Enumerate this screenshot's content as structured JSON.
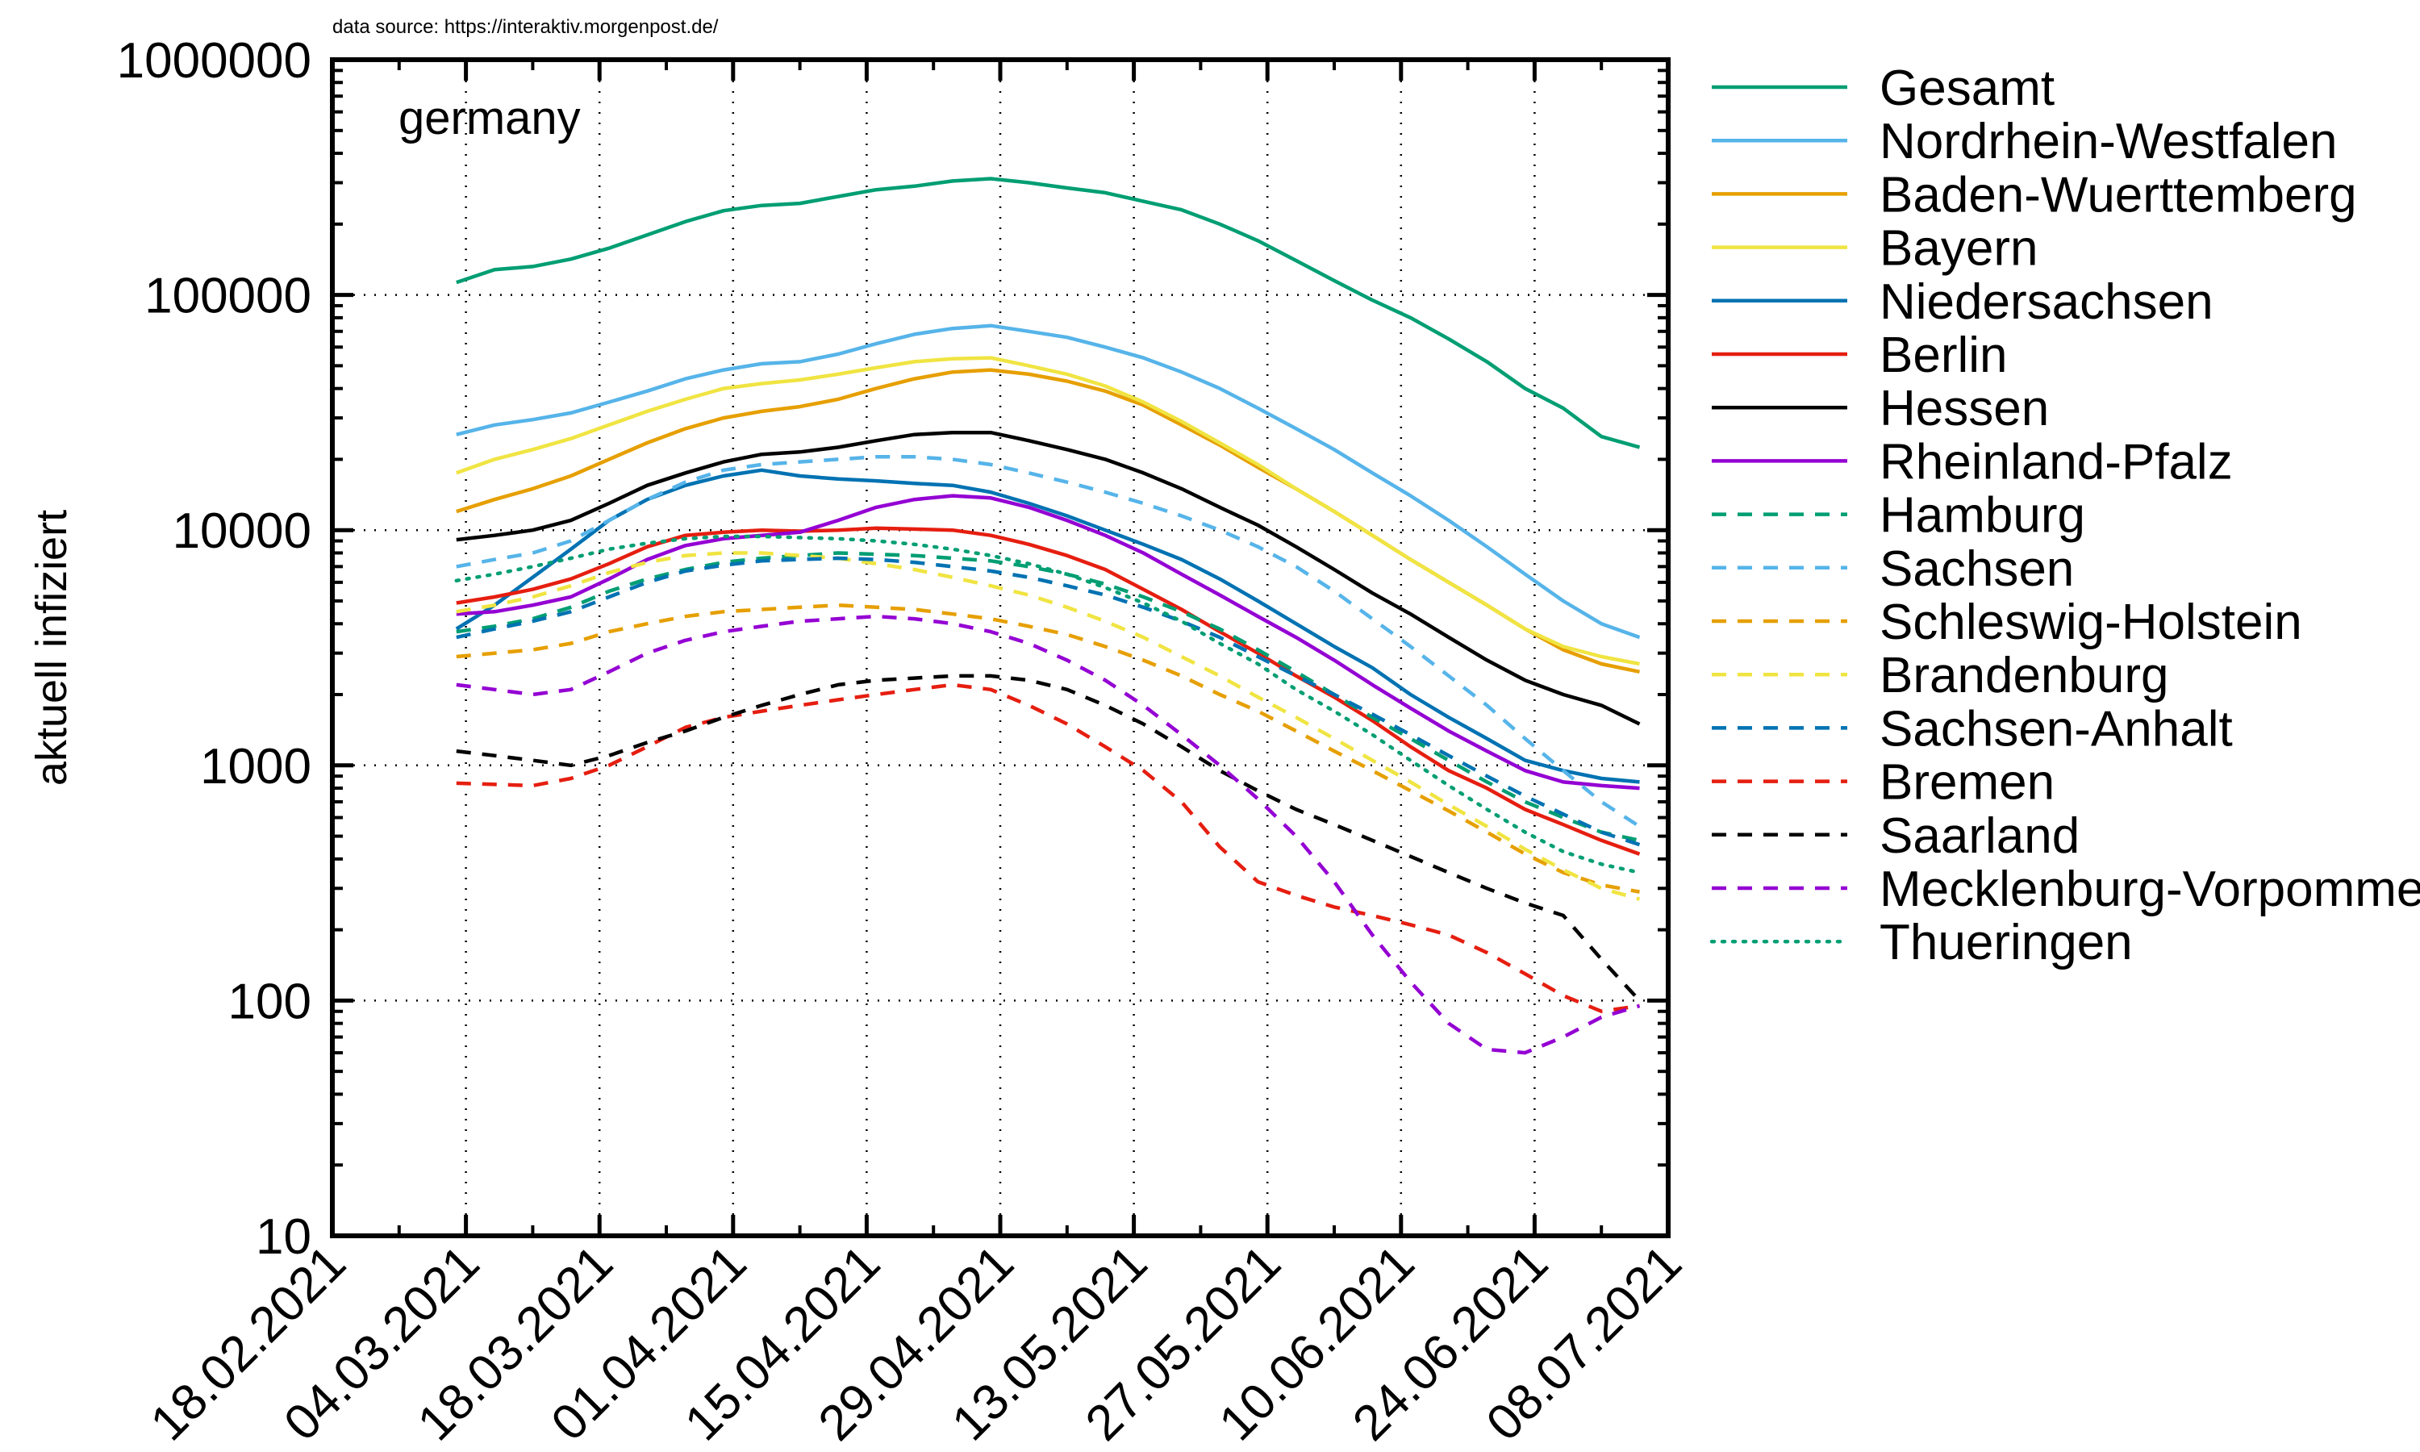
{
  "source_note": "data source: https://interaktiv.morgenpost.de/",
  "chart_data": {
    "type": "line",
    "inset_label": "germany",
    "title": "",
    "xlabel": "",
    "ylabel": "aktuell infiziert",
    "yscale": "log",
    "ylim": [
      10,
      1000000
    ],
    "y_ticks": [
      "10",
      "100",
      "1000",
      "10000",
      "100000",
      "1000000"
    ],
    "xlim": [
      "2021-02-18",
      "2021-07-08"
    ],
    "x_ticks": [
      "18.02.2021",
      "04.03.2021",
      "18.03.2021",
      "01.04.2021",
      "15.04.2021",
      "29.04.2021",
      "13.05.2021",
      "27.05.2021",
      "10.06.2021",
      "24.06.2021",
      "08.07.2021"
    ],
    "grid": true,
    "legend_position": "outside-right",
    "x_start": "2021-03-03",
    "x_step_days": 4,
    "series": [
      {
        "name": "Gesamt",
        "color": "#009e73",
        "dash": "solid",
        "values": [
          113000,
          128000,
          132000,
          142000,
          158000,
          180000,
          205000,
          228000,
          240000,
          245000,
          262000,
          280000,
          290000,
          305000,
          312000,
          300000,
          285000,
          272000,
          250000,
          230000,
          200000,
          170000,
          140000,
          115000,
          95000,
          80000,
          65000,
          52000,
          40000,
          33000,
          25000,
          22500
        ]
      },
      {
        "name": "Nordrhein-Westfalen",
        "color": "#56b4e9",
        "dash": "solid",
        "values": [
          25500,
          28000,
          29500,
          31500,
          35000,
          39000,
          44000,
          48000,
          51000,
          52000,
          56000,
          62000,
          68000,
          72000,
          74000,
          70000,
          66000,
          60000,
          54000,
          47000,
          40000,
          33000,
          27000,
          22000,
          17500,
          14000,
          11000,
          8500,
          6500,
          5000,
          4000,
          3500
        ]
      },
      {
        "name": "Baden-Wuerttemberg",
        "color": "#e69f00",
        "dash": "solid",
        "values": [
          12000,
          13500,
          15000,
          17000,
          20000,
          23500,
          27000,
          30000,
          32000,
          33500,
          36000,
          40000,
          44000,
          47000,
          48000,
          46000,
          43000,
          39000,
          34000,
          28000,
          23000,
          18500,
          15000,
          12000,
          9500,
          7500,
          6000,
          4800,
          3800,
          3100,
          2700,
          2500
        ]
      },
      {
        "name": "Bayern",
        "color": "#f0e442",
        "dash": "solid",
        "values": [
          17500,
          20000,
          22000,
          24500,
          28000,
          32000,
          36000,
          40000,
          42000,
          43500,
          46000,
          49000,
          52000,
          53500,
          54000,
          50000,
          46000,
          41000,
          35000,
          29000,
          23500,
          19000,
          15000,
          12000,
          9500,
          7500,
          6000,
          4800,
          3800,
          3200,
          2900,
          2700
        ]
      },
      {
        "name": "Niedersachsen",
        "color": "#0072b2",
        "dash": "solid",
        "values": [
          3800,
          4800,
          6300,
          8300,
          11000,
          13500,
          15500,
          17000,
          18000,
          17000,
          16500,
          16200,
          15800,
          15500,
          14500,
          13000,
          11500,
          10000,
          8700,
          7500,
          6200,
          5000,
          4000,
          3200,
          2600,
          2000,
          1600,
          1300,
          1050,
          950,
          880,
          850
        ]
      },
      {
        "name": "Berlin",
        "color": "#e51e10",
        "dash": "solid",
        "values": [
          4900,
          5200,
          5600,
          6200,
          7200,
          8500,
          9500,
          9800,
          10000,
          9900,
          10000,
          10200,
          10100,
          10000,
          9500,
          8700,
          7800,
          6800,
          5600,
          4600,
          3700,
          3000,
          2400,
          1950,
          1550,
          1200,
          950,
          800,
          650,
          560,
          480,
          420
        ]
      },
      {
        "name": "Hessen",
        "color": "#000000",
        "dash": "solid",
        "values": [
          9100,
          9500,
          10000,
          11000,
          13000,
          15500,
          17500,
          19500,
          21000,
          21500,
          22500,
          24000,
          25500,
          26000,
          26000,
          24000,
          22000,
          20000,
          17500,
          15000,
          12500,
          10500,
          8500,
          6800,
          5400,
          4400,
          3500,
          2800,
          2300,
          2000,
          1800,
          1500
        ]
      },
      {
        "name": "Rheinland-Pfalz",
        "color": "#9400d3",
        "dash": "solid",
        "values": [
          4400,
          4500,
          4800,
          5200,
          6200,
          7500,
          8600,
          9200,
          9500,
          9800,
          11000,
          12500,
          13500,
          14000,
          13700,
          12500,
          11000,
          9500,
          8000,
          6500,
          5300,
          4300,
          3500,
          2800,
          2200,
          1750,
          1400,
          1150,
          950,
          850,
          820,
          800
        ]
      },
      {
        "name": "Hamburg",
        "color": "#009e73",
        "dash": "dashed",
        "values": [
          3700,
          3900,
          4200,
          4700,
          5500,
          6200,
          6800,
          7300,
          7600,
          7800,
          8000,
          7900,
          7800,
          7600,
          7400,
          7000,
          6500,
          5900,
          5200,
          4500,
          3800,
          3100,
          2500,
          2000,
          1600,
          1300,
          1050,
          850,
          700,
          600,
          520,
          480
        ]
      },
      {
        "name": "Sachsen",
        "color": "#56b4e9",
        "dash": "dashed",
        "values": [
          7000,
          7500,
          8000,
          9000,
          11000,
          13500,
          16000,
          18000,
          19000,
          19500,
          20000,
          20500,
          20500,
          20000,
          19000,
          17500,
          16000,
          14500,
          13000,
          11500,
          10000,
          8500,
          7000,
          5500,
          4200,
          3200,
          2400,
          1800,
          1300,
          950,
          700,
          550
        ]
      },
      {
        "name": "Schleswig-Holstein",
        "color": "#e69f00",
        "dash": "dashed",
        "values": [
          2900,
          3000,
          3100,
          3300,
          3700,
          4000,
          4300,
          4500,
          4600,
          4700,
          4800,
          4700,
          4600,
          4400,
          4200,
          3900,
          3600,
          3200,
          2800,
          2400,
          2000,
          1700,
          1400,
          1150,
          950,
          780,
          640,
          520,
          420,
          350,
          310,
          290
        ]
      },
      {
        "name": "Brandenburg",
        "color": "#f0e442",
        "dash": "dashed",
        "values": [
          4500,
          4800,
          5200,
          5800,
          6600,
          7300,
          7800,
          8000,
          8000,
          7800,
          7600,
          7200,
          6800,
          6300,
          5800,
          5300,
          4700,
          4100,
          3500,
          2900,
          2400,
          1950,
          1600,
          1300,
          1050,
          850,
          680,
          550,
          440,
          360,
          300,
          270
        ]
      },
      {
        "name": "Sachsen-Anhalt",
        "color": "#0072b2",
        "dash": "dashed",
        "values": [
          3500,
          3800,
          4100,
          4500,
          5200,
          6000,
          6700,
          7100,
          7400,
          7500,
          7600,
          7500,
          7300,
          7000,
          6700,
          6300,
          5800,
          5300,
          4700,
          4100,
          3500,
          2900,
          2400,
          2000,
          1650,
          1350,
          1100,
          900,
          740,
          620,
          520,
          460
        ]
      },
      {
        "name": "Bremen",
        "color": "#e51e10",
        "dash": "dashed",
        "values": [
          840,
          830,
          820,
          880,
          1000,
          1200,
          1450,
          1600,
          1700,
          1800,
          1900,
          2000,
          2100,
          2200,
          2100,
          1800,
          1500,
          1200,
          950,
          700,
          450,
          320,
          280,
          250,
          230,
          210,
          190,
          160,
          130,
          105,
          90,
          95
        ]
      },
      {
        "name": "Saarland",
        "color": "#000000",
        "dash": "dashed",
        "values": [
          1150,
          1100,
          1050,
          1000,
          1100,
          1250,
          1400,
          1600,
          1800,
          2000,
          2200,
          2300,
          2350,
          2400,
          2400,
          2300,
          2100,
          1800,
          1500,
          1200,
          950,
          780,
          650,
          560,
          480,
          410,
          350,
          300,
          260,
          230,
          150,
          100
        ]
      },
      {
        "name": "Mecklenburg-Vorpommern",
        "color": "#9400d3",
        "dash": "dashed",
        "values": [
          2200,
          2100,
          2000,
          2100,
          2500,
          3000,
          3400,
          3700,
          3900,
          4100,
          4200,
          4300,
          4200,
          4000,
          3700,
          3300,
          2800,
          2300,
          1800,
          1350,
          1000,
          720,
          500,
          320,
          190,
          120,
          80,
          62,
          60,
          70,
          85,
          95
        ]
      },
      {
        "name": "Thueringen",
        "color": "#009e73",
        "dash": "dotted",
        "values": [
          6100,
          6500,
          7000,
          7600,
          8300,
          8800,
          9200,
          9400,
          9400,
          9300,
          9200,
          9000,
          8700,
          8300,
          7800,
          7200,
          6500,
          5700,
          4900,
          4100,
          3300,
          2700,
          2100,
          1700,
          1350,
          1050,
          820,
          650,
          520,
          430,
          380,
          350
        ]
      }
    ]
  }
}
